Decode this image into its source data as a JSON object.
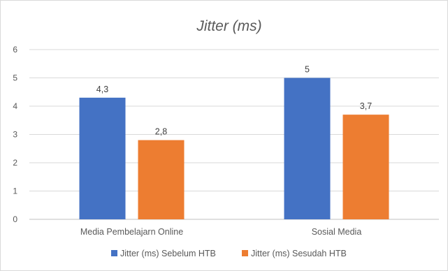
{
  "chart_data": {
    "type": "bar",
    "title": "Jitter (ms)",
    "xlabel": "",
    "ylabel": "",
    "categories": [
      "Media Pembelajarn Online",
      "Sosial Media"
    ],
    "series": [
      {
        "name": "Jitter (ms) Sebelum HTB",
        "values": [
          4.3,
          5
        ],
        "labels": [
          "4,3",
          "5"
        ],
        "color": "#4472c4"
      },
      {
        "name": "Jitter (ms) Sesudah HTB",
        "values": [
          2.8,
          3.7
        ],
        "labels": [
          "2,8",
          "3,7"
        ],
        "color": "#ed7d31"
      }
    ],
    "ylim": [
      0,
      6
    ],
    "yticks": [
      0,
      1,
      2,
      3,
      4,
      5,
      6
    ],
    "grid": true,
    "legend_position": "bottom"
  }
}
